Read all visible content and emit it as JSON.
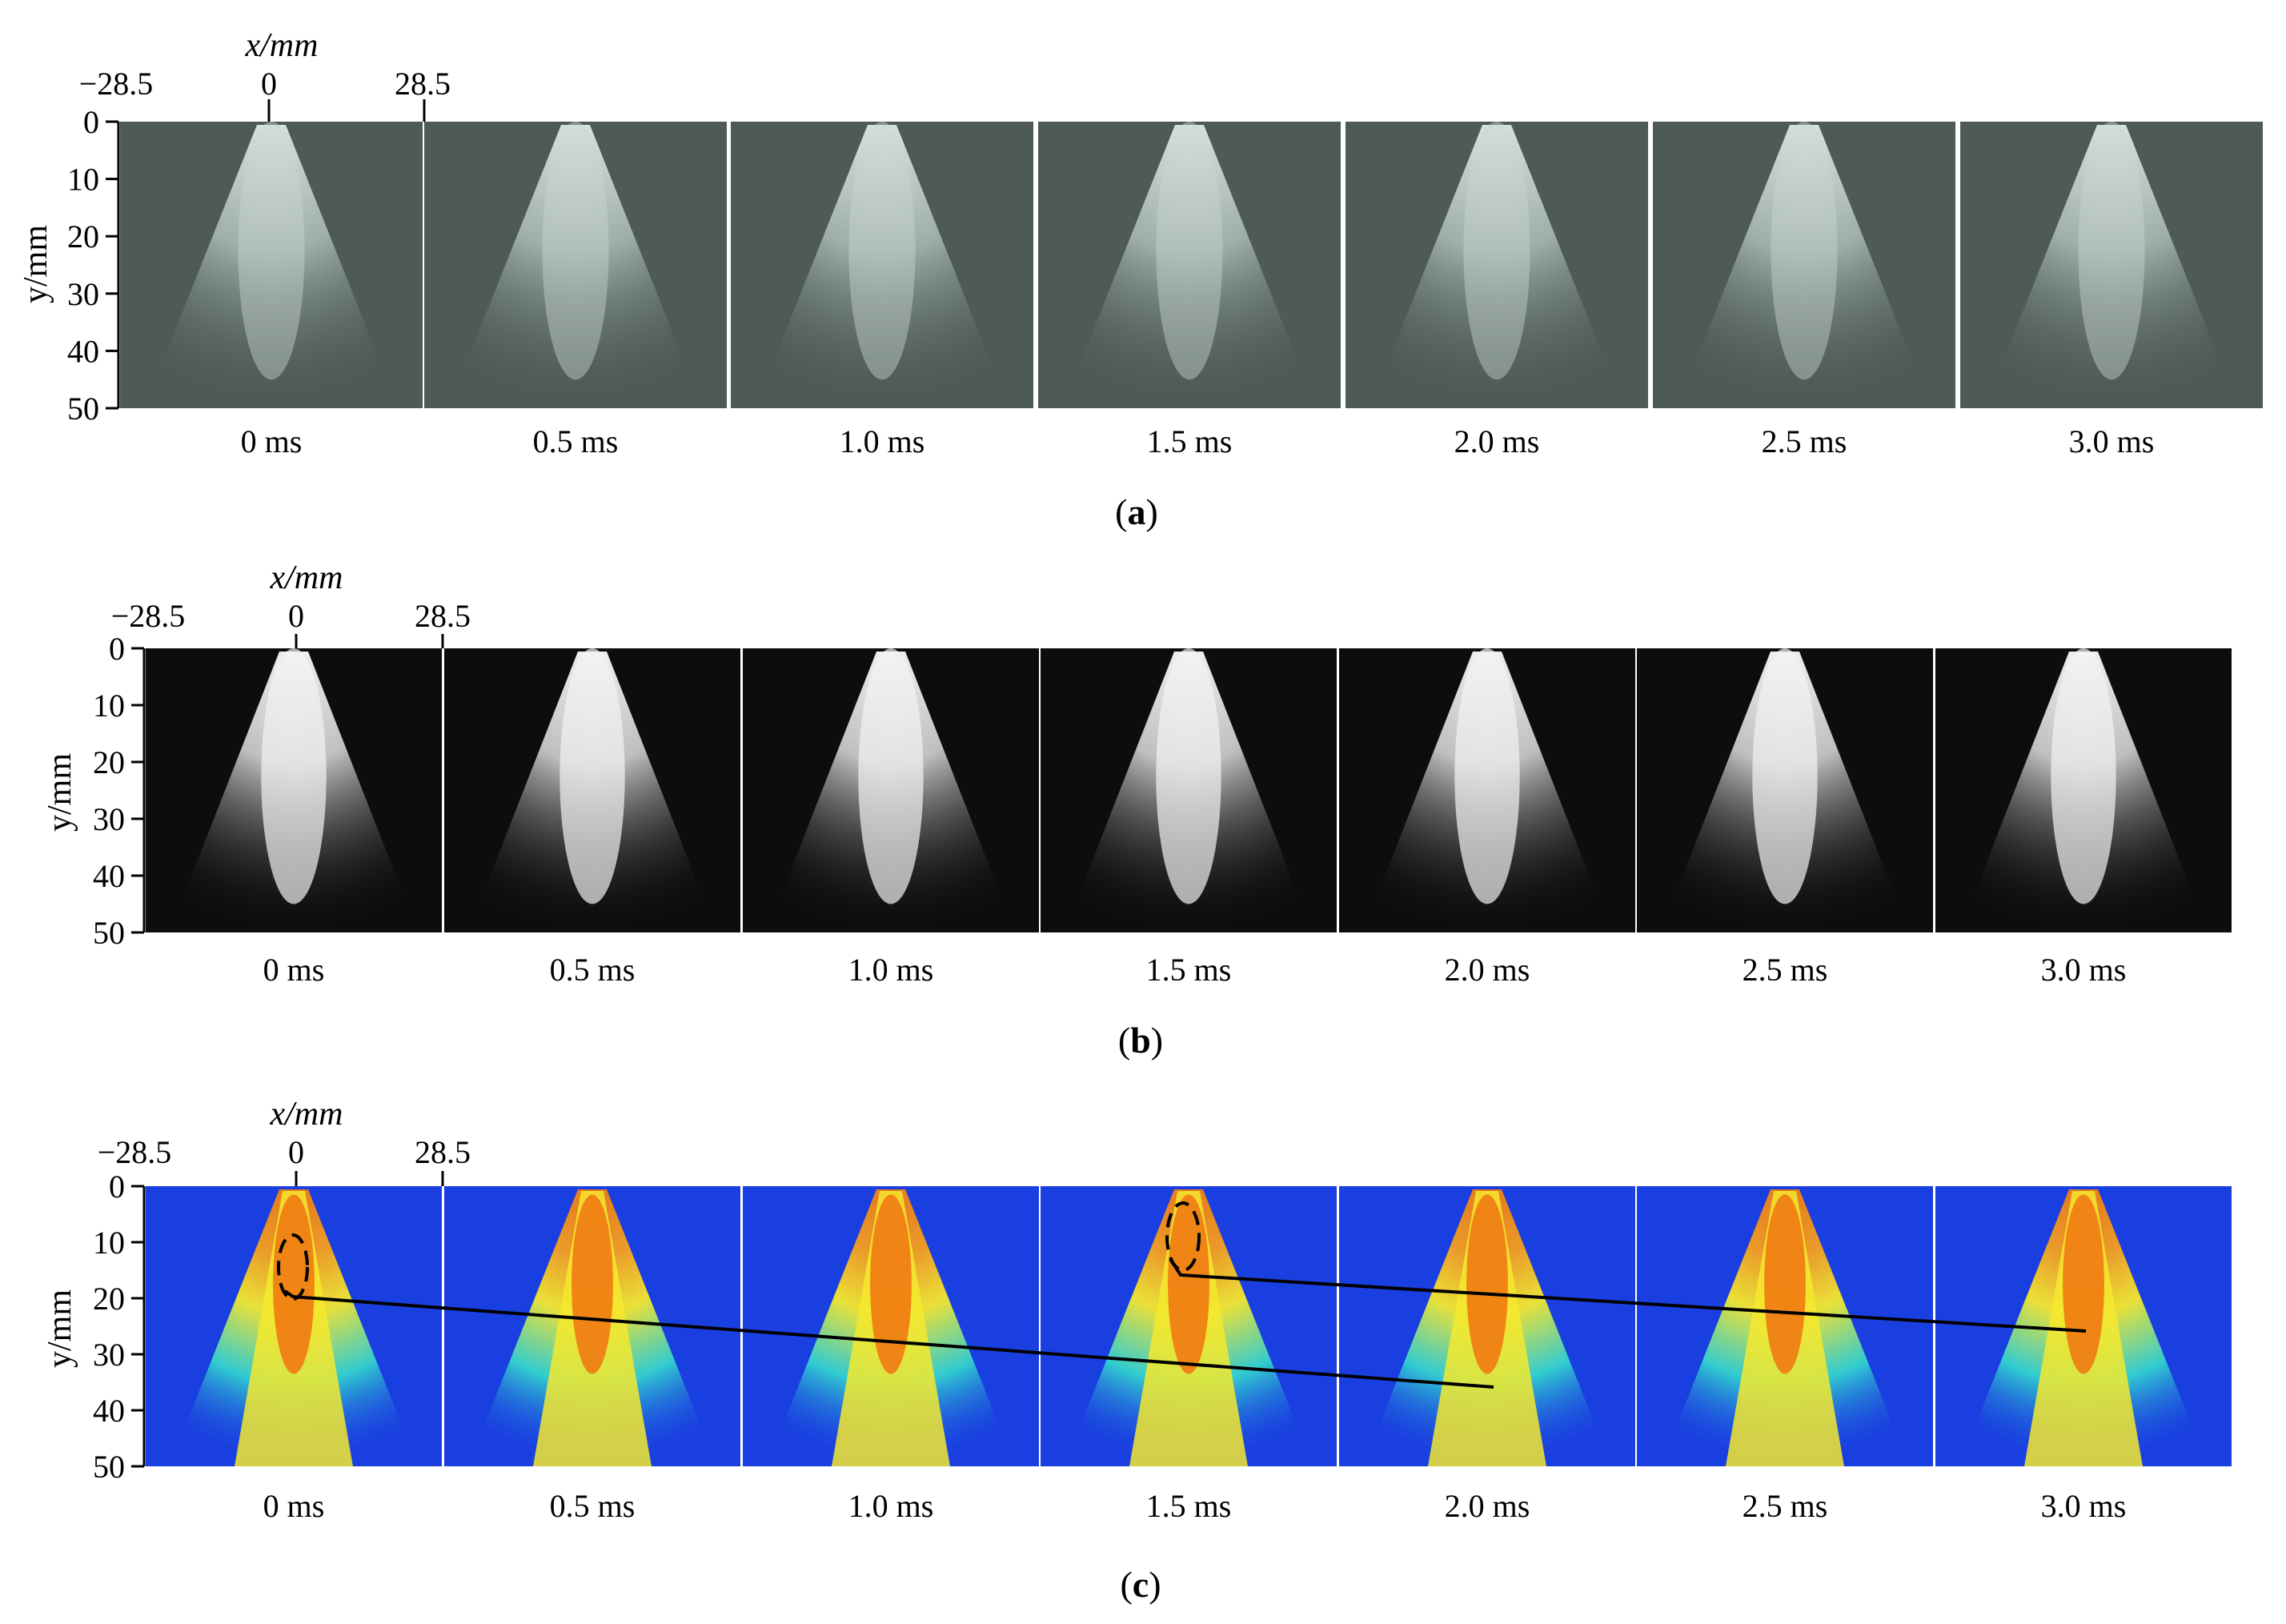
{
  "colors": {
    "raw_bg": "#4d5a57",
    "raw_spray": "#c7d4d0",
    "gray_bg": "#0d0d0d",
    "gray_spray": "#f2f2f2",
    "pseudo_bg": "#1a3fe0",
    "pseudo_mid": "#32d3d0",
    "pseudo_yellow": "#f5e92e",
    "pseudo_core": "#f07a12",
    "axis": "#000000"
  },
  "axes": {
    "x_label": "x/mm",
    "y_label": "y/mm",
    "x_ticks": [
      "−28.5",
      "0",
      "28.5"
    ],
    "y_ticks": [
      "0",
      "10",
      "20",
      "30",
      "40",
      "50"
    ]
  },
  "time_labels": [
    "0 ms",
    "0.5 ms",
    "1.0 ms",
    "1.5 ms",
    "2.0 ms",
    "2.5 ms",
    "3.0 ms"
  ],
  "panels": [
    {
      "id": "a",
      "caption_open": "(",
      "caption_letter": "a",
      "caption_close": ")",
      "style": "raw"
    },
    {
      "id": "b",
      "caption_open": "(",
      "caption_letter": "b",
      "caption_close": ")",
      "style": "gray"
    },
    {
      "id": "c",
      "caption_open": "(",
      "caption_letter": "c",
      "caption_close": ")",
      "style": "pseudo"
    }
  ]
}
